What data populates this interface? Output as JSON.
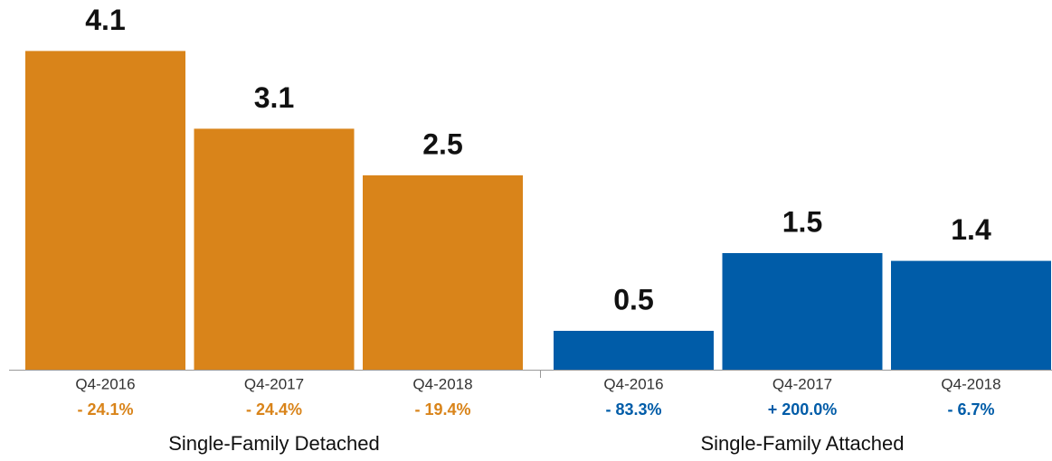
{
  "chart_data": {
    "type": "bar",
    "groups": [
      {
        "name": "Single-Family Detached",
        "color": "#d9841a",
        "categories": [
          "Q4-2016",
          "Q4-2017",
          "Q4-2018"
        ],
        "values": [
          4.1,
          3.1,
          2.5
        ],
        "changes": [
          "- 24.1%",
          "- 24.4%",
          "- 19.4%"
        ]
      },
      {
        "name": "Single-Family Attached",
        "color": "#005ca8",
        "categories": [
          "Q4-2016",
          "Q4-2017",
          "Q4-2018"
        ],
        "values": [
          0.5,
          1.5,
          1.4
        ],
        "changes": [
          "- 83.3%",
          "+ 200.0%",
          "- 6.7%"
        ]
      }
    ]
  }
}
